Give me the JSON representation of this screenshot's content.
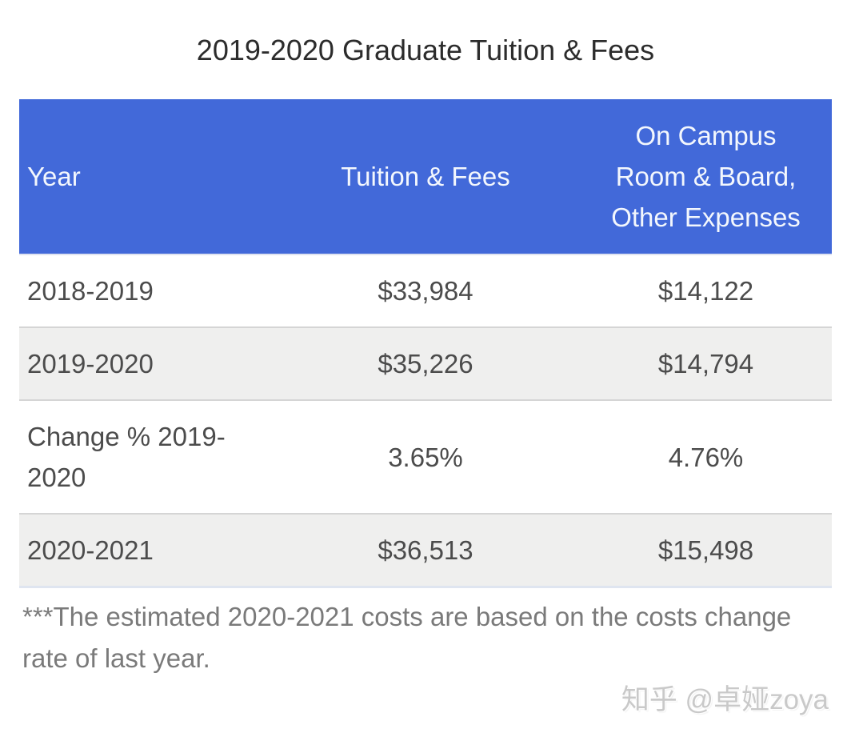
{
  "title": "2019-2020 Graduate Tuition & Fees",
  "table": {
    "columns": [
      "Year",
      "Tuition & Fees",
      "On Campus Room & Board, Other Expenses"
    ],
    "rows": [
      [
        "2018-2019",
        "$33,984",
        "$14,122"
      ],
      [
        "2019-2020",
        "$35,226",
        "$14,794"
      ],
      [
        "Change % 2019-2020",
        "3.65%",
        "4.76%"
      ],
      [
        "2020-2021",
        "$36,513",
        "$15,498"
      ]
    ]
  },
  "footnote": "***The estimated 2020-2021 costs are based on the costs change rate of last year.",
  "watermark": "知乎 @卓娅zoya",
  "colors": {
    "header_bg": "#4269d9",
    "header_text": "#f3f7fd",
    "zebra_row_bg": "#efefee",
    "body_text": "#4c4c4c",
    "title_text": "#2c2c2c",
    "footnote_text": "#7a7a7a",
    "watermark_text": "#c9c9c9",
    "row_border": "#d5d5d5"
  },
  "chart_data": {
    "type": "table",
    "title": "2019-2020 Graduate Tuition & Fees",
    "columns": [
      "Year",
      "Tuition & Fees",
      "On Campus Room & Board, Other Expenses"
    ],
    "rows": [
      [
        "2018-2019",
        "$33,984",
        "$14,122"
      ],
      [
        "2019-2020",
        "$35,226",
        "$14,794"
      ],
      [
        "Change % 2019-2020",
        "3.65%",
        "4.76%"
      ],
      [
        "2020-2021",
        "$36,513",
        "$15,498"
      ]
    ],
    "tuition_and_fees_usd": [
      33984,
      35226,
      36513
    ],
    "room_board_other_usd": [
      14122,
      14794,
      15498
    ],
    "change_pct_2019_2020": {
      "tuition_and_fees": 3.65,
      "room_board_other": 4.76
    },
    "footnote": "***The estimated 2020-2021 costs are based on the costs change rate of last year."
  }
}
